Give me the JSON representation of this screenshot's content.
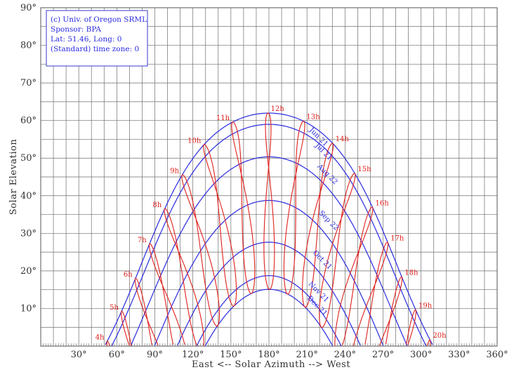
{
  "chart_data": {
    "type": "line",
    "title": "",
    "xlabel": "East <-- Solar Azimuth --> West",
    "ylabel": "Solar Elevation",
    "xlim": [
      0,
      360
    ],
    "ylim": [
      0,
      90
    ],
    "x_ticks": [
      "30°",
      "60°",
      "90°",
      "120°",
      "150°",
      "180°",
      "210°",
      "240°",
      "270°",
      "300°",
      "330°",
      "360°"
    ],
    "y_ticks": [
      "10°",
      "20°",
      "30°",
      "40°",
      "50°",
      "60°",
      "70°",
      "80°",
      "90°"
    ],
    "grid": true,
    "info_box": [
      "(c) Univ. of Oregon SRML",
      "Sponsor: BPA",
      "Lat: 51.46, Long: 0",
      "(Standard) time zone: 0"
    ],
    "colors": {
      "date_curve": "#2a2ae0",
      "hour_curve": "#e0201c",
      "grid": "#6e6e6e"
    },
    "date_series": [
      {
        "label": "Jun 21",
        "label_at": [
          218,
          55.2
        ],
        "declination": 23.44,
        "eot": -1.6
      },
      {
        "label": "Jul 21",
        "label_at": [
          222,
          51.3
        ],
        "declination": 20.44,
        "eot": -6.2
      },
      {
        "label": "Aug 22",
        "label_at": [
          225,
          45.3
        ],
        "declination": 11.8,
        "eot": -3.2
      },
      {
        "label": "Sep 22",
        "label_at": [
          226,
          33.0
        ],
        "declination": 0.2,
        "eot": 7.4
      },
      {
        "label": "Oct 21",
        "label_at": [
          221,
          22.5
        ],
        "declination": -10.9,
        "eot": 15.3
      },
      {
        "label": "Nov 21",
        "label_at": [
          218,
          14.0
        ],
        "declination": -19.8,
        "eot": 14.0
      },
      {
        "label": "Dec 21",
        "label_at": [
          217,
          10.3
        ],
        "declination": -23.44,
        "eot": 1.6
      }
    ],
    "hour_series": [
      "4h",
      "5h",
      "6h",
      "7h",
      "8h",
      "9h",
      "10h",
      "11h",
      "12h",
      "13h",
      "14h",
      "15h",
      "16h",
      "17h",
      "18h",
      "19h",
      "20h"
    ],
    "latitude": 51.46,
    "longitude": 0
  }
}
